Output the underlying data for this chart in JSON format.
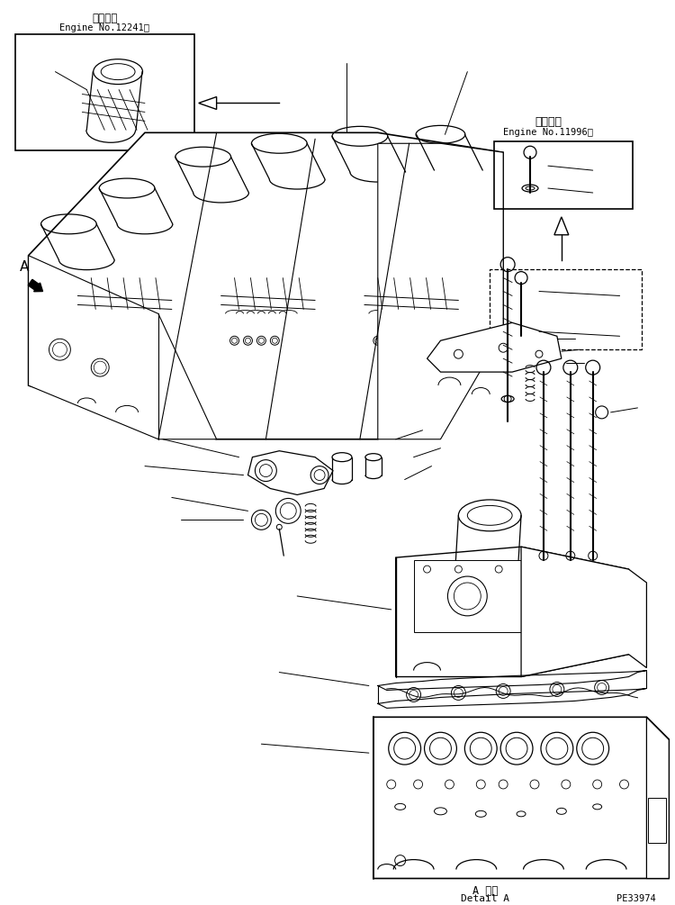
{
  "background_color": "#ffffff",
  "line_color": "#000000",
  "text_color": "#000000",
  "fig_width": 7.5,
  "fig_height": 10.05,
  "dpi": 100,
  "top_left_kanji": "適用号機",
  "top_left_engine": "Engine No.12241～",
  "top_right_kanji": "適用号機",
  "top_right_engine": "Engine No.11996～",
  "label_A": "A",
  "bottom_kanji": "A 詳細",
  "bottom_detail": "Detail A",
  "part_number": "PE33974"
}
